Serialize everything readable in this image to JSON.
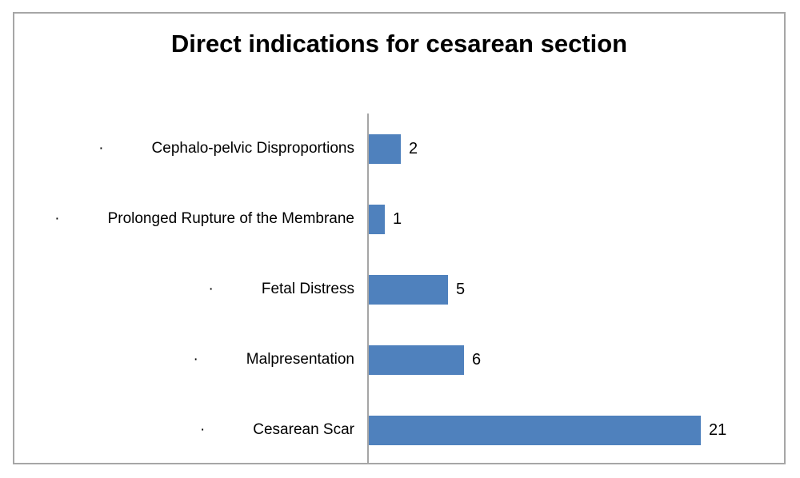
{
  "chart_data": {
    "type": "bar",
    "orientation": "horizontal",
    "title": "Direct indications for cesarean section",
    "categories": [
      "Cephalo-pelvic Disproportions",
      "Prolonged Rupture of the Membrane",
      "Fetal Distress",
      "Malpresentation",
      "Cesarean Scar"
    ],
    "values": [
      2,
      1,
      5,
      6,
      21
    ],
    "bullet_char": "·",
    "xlabel": "",
    "ylabel": "",
    "xlim": [
      0,
      21
    ],
    "grid": false,
    "legend": false,
    "value_labels_shown": true,
    "colors": {
      "bar": "#4f81bd",
      "axis": "#a6a6a6",
      "border": "#a6a6a6",
      "text": "#000000"
    }
  }
}
